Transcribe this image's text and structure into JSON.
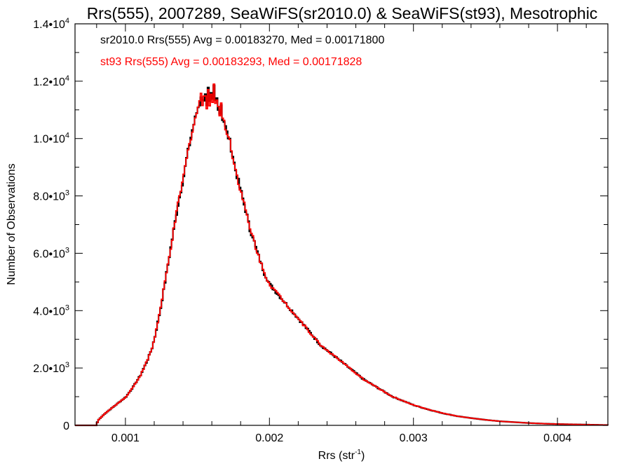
{
  "chart_data": {
    "type": "histogram",
    "title": "Rrs(555), 2007289, SeaWiFS(sr2010.0) & SeaWiFS(st93), Mesotrophic",
    "xlabel": "Rrs (str",
    "xlabel_exp": "-1",
    "xlabel_suffix": ")",
    "ylabel": "Number of Observations",
    "xlim": [
      0.00065,
      0.00435
    ],
    "ylim": [
      0,
      14000
    ],
    "x_ticks": [
      {
        "value": 0.001,
        "label": "0.001"
      },
      {
        "value": 0.002,
        "label": "0.002"
      },
      {
        "value": 0.003,
        "label": "0.003"
      },
      {
        "value": 0.004,
        "label": "0.004"
      }
    ],
    "y_ticks": [
      {
        "value": 0,
        "mant": "0",
        "exp": ""
      },
      {
        "value": 2000,
        "mant": "2.0•10",
        "exp": "3"
      },
      {
        "value": 4000,
        "mant": "4.0•10",
        "exp": "3"
      },
      {
        "value": 6000,
        "mant": "6.0•10",
        "exp": "3"
      },
      {
        "value": 8000,
        "mant": "8.0•10",
        "exp": "3"
      },
      {
        "value": 10000,
        "mant": "1.0•10",
        "exp": "4"
      },
      {
        "value": 12000,
        "mant": "1.2•10",
        "exp": "4"
      },
      {
        "value": 14000,
        "mant": "1.4•10",
        "exp": "4"
      }
    ],
    "grid": false,
    "annotations": [
      {
        "text": "sr2010.0 Rrs(555) Avg = 0.00183270, Med = 0.00171800",
        "color": "#000000"
      },
      {
        "text": "st93 Rrs(555) Avg = 0.00183293, Med = 0.00171828",
        "color": "#ff0000"
      }
    ],
    "bin_width": 1e-05,
    "series": [
      {
        "color": "#000000",
        "x": [
          0.0006,
          0.00079,
          0.0008,
          0.00081,
          0.00085,
          0.0009,
          0.00095,
          0.001,
          0.00105,
          0.0011,
          0.00115,
          0.00118,
          0.0012,
          0.00122,
          0.00124,
          0.00126,
          0.00128,
          0.0013,
          0.00132,
          0.00134,
          0.00136,
          0.00138,
          0.0014,
          0.00142,
          0.00144,
          0.00146,
          0.00148,
          0.0015,
          0.00151,
          0.00152,
          0.00153,
          0.00154,
          0.00155,
          0.00156,
          0.00157,
          0.00158,
          0.00159,
          0.0016,
          0.00161,
          0.00162,
          0.00163,
          0.00164,
          0.00165,
          0.00166,
          0.00167,
          0.00168,
          0.0017,
          0.00172,
          0.00174,
          0.00176,
          0.00178,
          0.0018,
          0.00182,
          0.00184,
          0.00186,
          0.00188,
          0.0019,
          0.00192,
          0.00194,
          0.00196,
          0.00198,
          0.002,
          0.00205,
          0.0021,
          0.00215,
          0.0022,
          0.00225,
          0.0023,
          0.00235,
          0.0024,
          0.00245,
          0.0025,
          0.00255,
          0.0026,
          0.00265,
          0.0027,
          0.00275,
          0.0028,
          0.00285,
          0.0029,
          0.003,
          0.0031,
          0.0032,
          0.0033,
          0.0034,
          0.0035,
          0.0036,
          0.0037,
          0.0038,
          0.0039,
          0.004,
          0.0041,
          0.0042,
          0.0043,
          0.00435
        ],
        "values": [
          0,
          0,
          100,
          200,
          400,
          600,
          800,
          1000,
          1350,
          1750,
          2300,
          2700,
          3100,
          3600,
          4100,
          4700,
          5300,
          5900,
          6500,
          7100,
          7700,
          8200,
          8700,
          9300,
          9800,
          10300,
          10700,
          11100,
          11200,
          11500,
          11300,
          11400,
          11600,
          11100,
          11700,
          11200,
          11500,
          11300,
          11800,
          11300,
          11400,
          11100,
          10900,
          11200,
          10700,
          10600,
          10200,
          9900,
          9400,
          8900,
          8500,
          8100,
          7700,
          7300,
          6800,
          6600,
          6200,
          5900,
          5600,
          5300,
          5100,
          4900,
          4600,
          4300,
          4000,
          3700,
          3400,
          3100,
          2800,
          2600,
          2400,
          2200,
          2000,
          1800,
          1600,
          1450,
          1300,
          1150,
          1000,
          900,
          700,
          550,
          420,
          320,
          250,
          190,
          140,
          110,
          80,
          60,
          45,
          35,
          25,
          15,
          10
        ]
      },
      {
        "color": "#ff0000",
        "x": [
          0.0006,
          0.00079,
          0.0008,
          0.00081,
          0.00085,
          0.0009,
          0.00095,
          0.001,
          0.00105,
          0.0011,
          0.00115,
          0.00118,
          0.0012,
          0.00122,
          0.00124,
          0.00126,
          0.00128,
          0.0013,
          0.00132,
          0.00134,
          0.00136,
          0.00138,
          0.0014,
          0.00142,
          0.00144,
          0.00146,
          0.00148,
          0.0015,
          0.00151,
          0.00152,
          0.00153,
          0.00154,
          0.00155,
          0.00156,
          0.00157,
          0.00158,
          0.00159,
          0.0016,
          0.00161,
          0.00162,
          0.00163,
          0.00164,
          0.00165,
          0.00166,
          0.00167,
          0.00168,
          0.0017,
          0.00172,
          0.00174,
          0.00176,
          0.00178,
          0.0018,
          0.00182,
          0.00184,
          0.00186,
          0.00188,
          0.0019,
          0.00192,
          0.00194,
          0.00196,
          0.00198,
          0.002,
          0.00205,
          0.0021,
          0.00215,
          0.0022,
          0.00225,
          0.0023,
          0.00235,
          0.0024,
          0.00245,
          0.0025,
          0.00255,
          0.0026,
          0.00265,
          0.0027,
          0.00275,
          0.0028,
          0.00285,
          0.0029,
          0.003,
          0.0031,
          0.0032,
          0.0033,
          0.0034,
          0.0035,
          0.0036,
          0.0037,
          0.0038,
          0.0039,
          0.004,
          0.0041,
          0.0042,
          0.0043,
          0.00435
        ],
        "values": [
          0,
          0,
          100,
          200,
          400,
          600,
          800,
          1000,
          1350,
          1750,
          2300,
          2700,
          3100,
          3600,
          4100,
          4700,
          5300,
          5900,
          6500,
          7100,
          7700,
          8200,
          8700,
          9300,
          9800,
          10300,
          10700,
          11100,
          11300,
          11500,
          11200,
          11500,
          11600,
          11100,
          11700,
          11200,
          11500,
          11300,
          11800,
          11300,
          11400,
          11100,
          10900,
          11200,
          10700,
          10600,
          10200,
          9900,
          9400,
          8900,
          8500,
          8100,
          7700,
          7300,
          6800,
          6600,
          6200,
          5900,
          5600,
          5300,
          5100,
          4900,
          4600,
          4300,
          4000,
          3700,
          3400,
          3100,
          2800,
          2600,
          2400,
          2200,
          2000,
          1800,
          1600,
          1450,
          1300,
          1150,
          1000,
          900,
          700,
          550,
          420,
          320,
          250,
          190,
          140,
          110,
          80,
          60,
          45,
          35,
          25,
          15,
          10
        ]
      }
    ]
  }
}
